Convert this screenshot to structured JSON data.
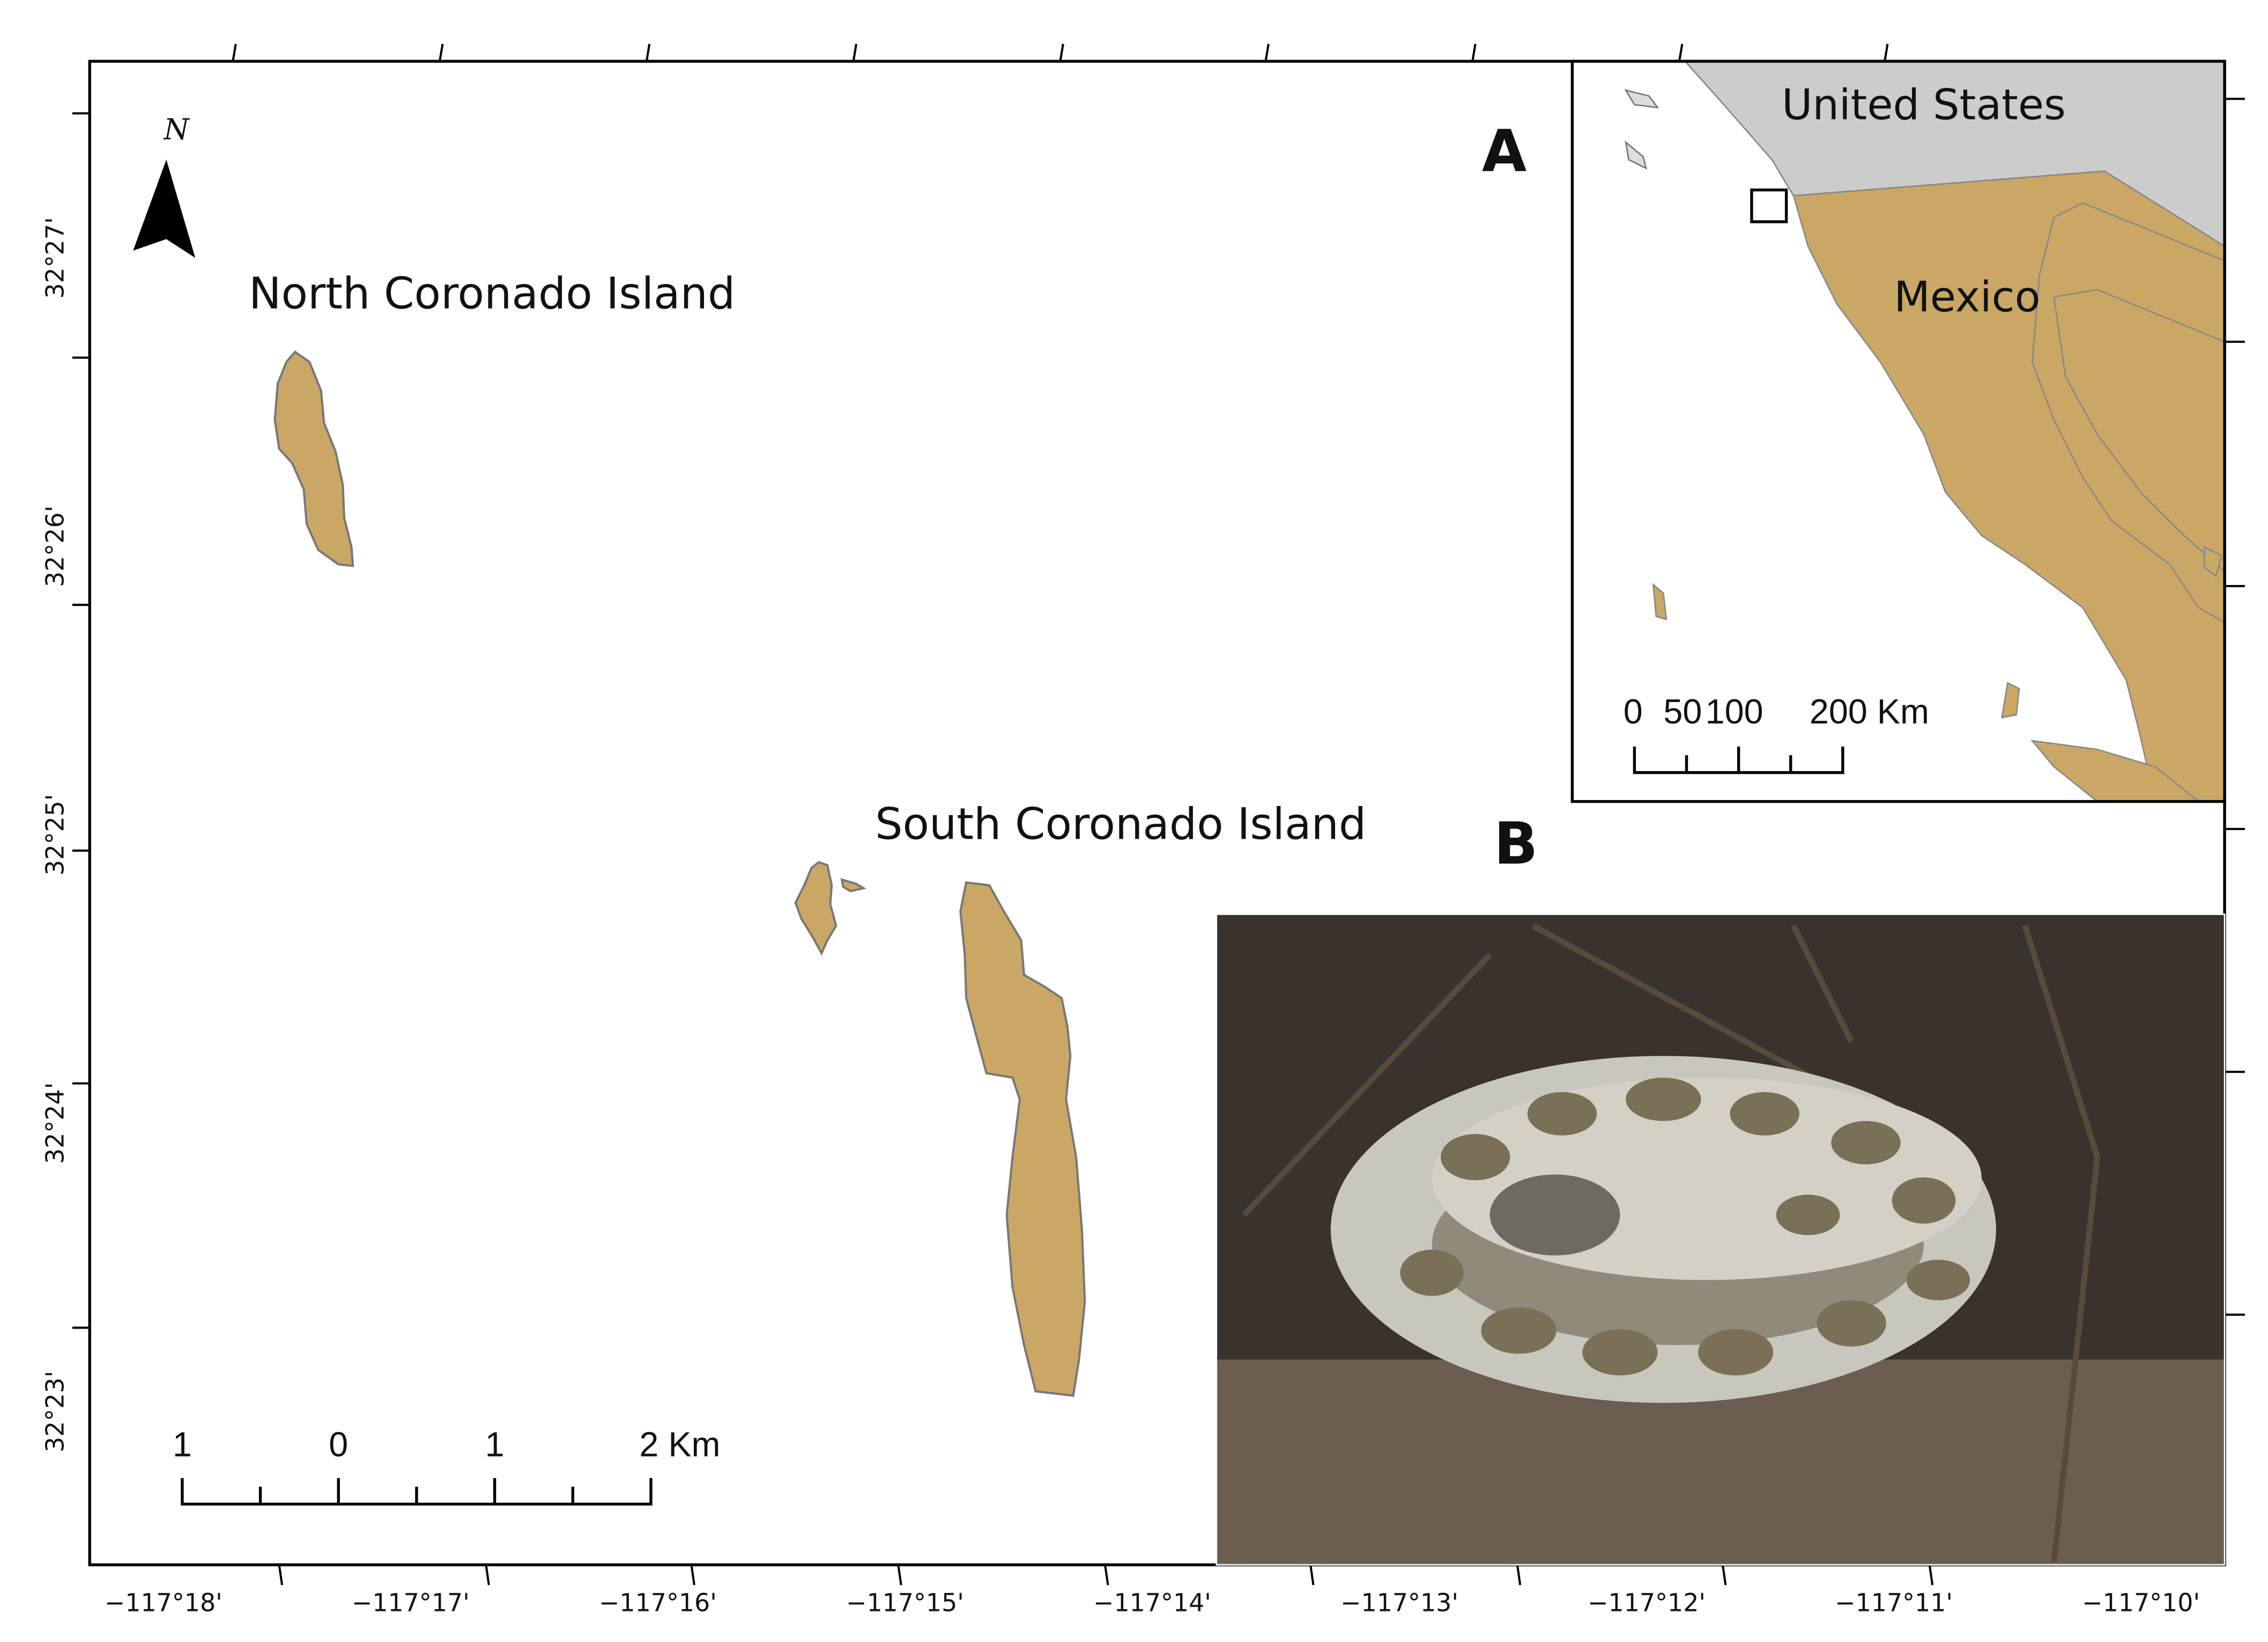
{
  "map": {
    "panel_a": "A",
    "panel_b": "B",
    "north_arrow": "N",
    "islands": [
      "North Coronado Island",
      "South Coronado Island"
    ],
    "scale_bar": [
      "1",
      "0",
      "1",
      "2 Km"
    ],
    "inset": {
      "countries": [
        "United States",
        "Mexico"
      ],
      "scale_bar": [
        "0",
        "50",
        "100",
        "200 Km"
      ]
    },
    "longitude_labels": [
      "−117°18'",
      "−117°17'",
      "−117°16'",
      "−117°15'",
      "−117°14'",
      "−117°13'",
      "−117°12'",
      "−117°11'",
      "−117°10'"
    ],
    "latitude_labels": [
      "32°27'",
      "32°26'",
      "32°25'",
      "32°24'",
      "32°23'"
    ]
  }
}
